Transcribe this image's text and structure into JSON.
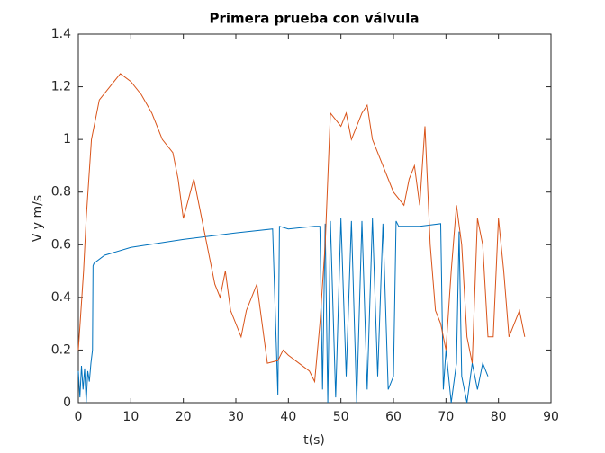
{
  "chart_data": {
    "type": "line",
    "title": "Primera prueba con válvula",
    "x_label": "t(s)",
    "y_label": "V y m/s",
    "xlim": [
      0,
      90
    ],
    "xticks": [
      0,
      10,
      20,
      30,
      40,
      50,
      60,
      70,
      80,
      90
    ],
    "ylim": [
      0,
      1.4
    ],
    "yticks": [
      0,
      0.2,
      0.4,
      0.6,
      0.8,
      1,
      1.2,
      1.4
    ],
    "grid": false,
    "series": [
      {
        "color": "#0072bd",
        "x": [
          0,
          0.3,
          0.6,
          0.9,
          1.2,
          1.5,
          1.8,
          2.1,
          2.4,
          2.7,
          2.8,
          3,
          5,
          10,
          20,
          30,
          37,
          38,
          38.3,
          40,
          45,
          46,
          46.5,
          47,
          47.5,
          48,
          49,
          50,
          51,
          52,
          53,
          54,
          55,
          56,
          57,
          58,
          59,
          60,
          60.5,
          61,
          65,
          69,
          69.5,
          70,
          71,
          72,
          72.5,
          73,
          74,
          75,
          76,
          77,
          78
        ],
        "values": [
          0.12,
          0.02,
          0.14,
          0.05,
          0.13,
          0.0,
          0.12,
          0.08,
          0.15,
          0.2,
          0.52,
          0.53,
          0.56,
          0.59,
          0.62,
          0.645,
          0.66,
          0.03,
          0.67,
          0.66,
          0.67,
          0.67,
          0.05,
          0.68,
          0.0,
          0.69,
          0.02,
          0.7,
          0.1,
          0.69,
          0.0,
          0.69,
          0.05,
          0.7,
          0.1,
          0.68,
          0.05,
          0.1,
          0.69,
          0.67,
          0.67,
          0.68,
          0.05,
          0.2,
          0.0,
          0.15,
          0.65,
          0.1,
          0.0,
          0.15,
          0.05,
          0.15,
          0.1
        ]
      },
      {
        "color": "#d95319",
        "x": [
          0,
          1,
          1.5,
          2.5,
          4,
          6,
          8,
          10,
          12,
          14,
          16,
          18,
          19,
          20,
          22,
          23,
          24,
          25,
          26,
          27,
          28,
          29,
          31,
          32,
          34,
          35,
          36,
          38,
          39,
          40,
          42,
          44,
          45,
          46,
          47,
          48,
          50,
          51,
          52,
          54,
          55,
          56,
          57,
          60,
          62,
          63,
          64,
          65,
          66,
          67,
          68,
          69,
          70,
          71,
          72,
          73,
          74,
          75,
          76,
          77,
          78,
          79,
          80,
          81,
          82,
          83,
          84,
          85
        ],
        "values": [
          0.2,
          0.5,
          0.7,
          1.0,
          1.15,
          1.2,
          1.25,
          1.22,
          1.17,
          1.1,
          1.0,
          0.95,
          0.85,
          0.7,
          0.85,
          0.75,
          0.65,
          0.55,
          0.45,
          0.4,
          0.5,
          0.35,
          0.25,
          0.35,
          0.45,
          0.3,
          0.15,
          0.16,
          0.2,
          0.18,
          0.15,
          0.12,
          0.08,
          0.3,
          0.6,
          1.1,
          1.05,
          1.1,
          1.0,
          1.1,
          1.13,
          1.0,
          0.95,
          0.8,
          0.75,
          0.85,
          0.9,
          0.75,
          1.05,
          0.6,
          0.35,
          0.3,
          0.2,
          0.5,
          0.75,
          0.6,
          0.25,
          0.15,
          0.7,
          0.6,
          0.25,
          0.25,
          0.7,
          0.5,
          0.25,
          0.3,
          0.35,
          0.25
        ]
      }
    ]
  }
}
